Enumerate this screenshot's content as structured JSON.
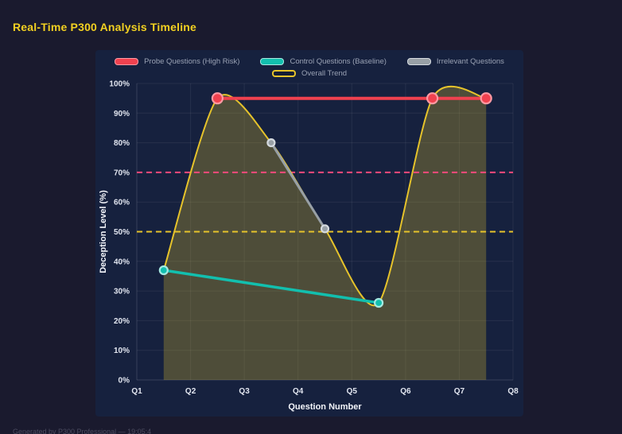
{
  "page": {
    "title": "Real-Time P300 Analysis Timeline",
    "footer": "Generated by P300 Professional — 19:05:4"
  },
  "colors": {
    "background": "#1a1a2e",
    "panel": "#16213e",
    "grid": "rgba(255,255,255,0.07)",
    "axis_line": "rgba(255,255,255,0.14)",
    "title_text": "#f2d021",
    "tick_text": "#e2e6f0",
    "axis_title_text": "#f3f5fa",
    "legend_text": "#9aa2b4",
    "footer_text": "#4c4c60"
  },
  "chart_data": {
    "type": "line",
    "title": "Real-Time P300 Analysis Timeline",
    "xlabel": "Question Number",
    "ylabel": "Deception Level (%)",
    "x_ticks": [
      "Q1",
      "Q2",
      "Q3",
      "Q4",
      "Q5",
      "Q6",
      "Q7",
      "Q8"
    ],
    "x_range": [
      1,
      8
    ],
    "y_ticks": [
      "0%",
      "10%",
      "20%",
      "30%",
      "40%",
      "50%",
      "60%",
      "70%",
      "80%",
      "90%",
      "100%"
    ],
    "ylim": [
      0,
      100
    ],
    "grid": true,
    "legend_position": "top",
    "series": [
      {
        "id": "probe",
        "name": "Probe Questions (High Risk)",
        "color": "#f0414f",
        "light": "#ff9aa4",
        "line_width": 4,
        "dot_radius": 6.5,
        "points": [
          [
            2.5,
            95
          ],
          [
            6.5,
            95
          ],
          [
            7.5,
            95
          ]
        ]
      },
      {
        "id": "control",
        "name": "Control Questions (Baseline)",
        "color": "#12bfae",
        "light": "#a5e9e1",
        "line_width": 3.5,
        "dot_radius": 5,
        "points": [
          [
            1.5,
            37
          ],
          [
            5.5,
            26
          ]
        ]
      },
      {
        "id": "irrelevant",
        "name": "Irrelevant Questions",
        "color": "#98a0a6",
        "light": "#d6dbe0",
        "line_width": 3,
        "dot_radius": 4.5,
        "points": [
          [
            3.5,
            80
          ],
          [
            4.5,
            51
          ]
        ]
      },
      {
        "id": "trend",
        "name": "Overall Trend",
        "color": "#e6c32b",
        "light": "#e6c32b",
        "line_width": 2,
        "dot_radius": 0,
        "smooth": true,
        "swatch": "outline",
        "fill": "rgba(230,195,45,0.27)",
        "points": [
          [
            1.5,
            37
          ],
          [
            2.5,
            95
          ],
          [
            3.5,
            80
          ],
          [
            4.5,
            51
          ],
          [
            5.5,
            26
          ],
          [
            6.5,
            95
          ],
          [
            7.5,
            95
          ]
        ]
      }
    ],
    "thresholds": [
      {
        "value": 70,
        "color": "#fa4a7b",
        "style": "dashed"
      },
      {
        "value": 50,
        "color": "#e6c32b",
        "style": "dashed"
      }
    ],
    "legend_rows": [
      [
        0,
        1,
        2
      ],
      [
        3
      ]
    ]
  }
}
